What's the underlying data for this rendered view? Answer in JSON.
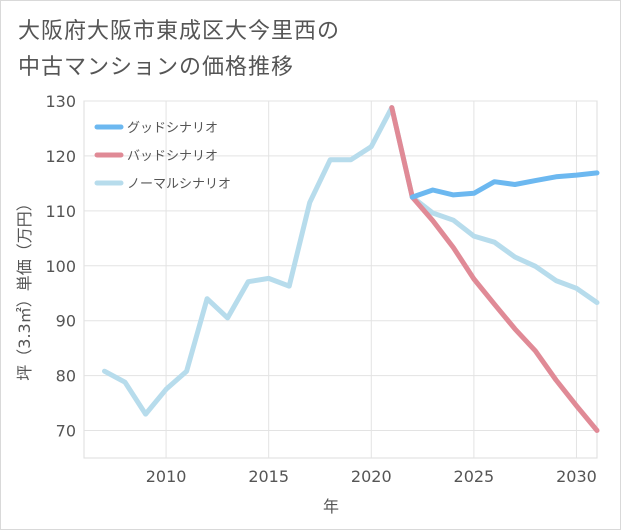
{
  "title_lines": [
    "大阪府大阪市東成区大今里西の",
    "中古マンションの価格推移"
  ],
  "chart_data": {
    "type": "line",
    "title": "大阪府大阪市東成区大今里西の中古マンションの価格推移",
    "xlabel": "年",
    "ylabel": "坪（3.3㎡）単価（万円）",
    "xlim": [
      2006,
      2031
    ],
    "ylim": [
      65,
      130
    ],
    "xticks": [
      2010,
      2015,
      2020,
      2025,
      2030
    ],
    "yticks": [
      70,
      80,
      90,
      100,
      110,
      120,
      130
    ],
    "grid": true,
    "legend_position": "top-left",
    "series": [
      {
        "name": "グッドシナリオ",
        "color": "#6cb8f0",
        "x": [
          2022,
          2023,
          2024,
          2025,
          2026,
          2027,
          2028,
          2029,
          2030,
          2031
        ],
        "values": [
          112.5,
          113.8,
          112.9,
          113.2,
          115.3,
          114.8,
          115.5,
          116.2,
          116.5,
          116.9
        ]
      },
      {
        "name": "バッドシナリオ",
        "color": "#e08a96",
        "x": [
          2021,
          2022,
          2023,
          2024,
          2025,
          2026,
          2027,
          2028,
          2029,
          2030,
          2031
        ],
        "values": [
          128.8,
          112.5,
          108.2,
          103.3,
          97.6,
          93.0,
          88.5,
          84.5,
          79.2,
          74.5,
          70.0
        ]
      },
      {
        "name": "ノーマルシナリオ",
        "color": "#b7dcec",
        "x": [
          2007,
          2008,
          2009,
          2010,
          2011,
          2012,
          2013,
          2014,
          2015,
          2016,
          2017,
          2018,
          2019,
          2020,
          2021,
          2022,
          2023,
          2024,
          2025,
          2026,
          2027,
          2028,
          2029,
          2030,
          2031
        ],
        "values": [
          80.8,
          78.8,
          73.0,
          77.5,
          80.8,
          94.0,
          90.5,
          97.1,
          97.7,
          96.3,
          111.5,
          119.3,
          119.3,
          121.7,
          128.8,
          112.5,
          109.6,
          108.3,
          105.4,
          104.3,
          101.6,
          99.9,
          97.3,
          95.9,
          93.3
        ]
      }
    ]
  }
}
